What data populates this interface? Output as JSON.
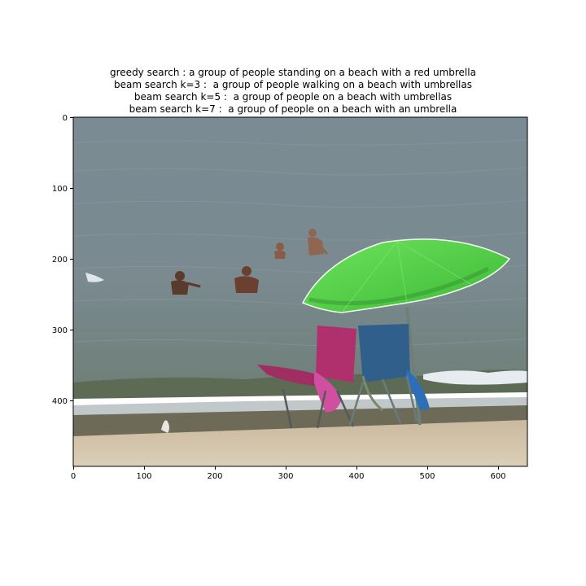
{
  "captions": [
    "greedy search : a group of people standing on a beach with a red umbrella",
    "beam search k=3 :  a group of people walking on a beach with umbrellas",
    "beam search k=5 :  a group of people on a beach with umbrellas",
    "beam search k=7 :  a group of people on a beach with an umbrella"
  ],
  "axes": {
    "x_ticks": [
      "0",
      "100",
      "200",
      "300",
      "400",
      "500",
      "600"
    ],
    "y_ticks": [
      "0",
      "100",
      "200",
      "300",
      "400"
    ]
  },
  "colors": {
    "sea": "#7a8a92",
    "sand": "#d6c7ae",
    "umbrella": "#4fd343",
    "chair_pink": "#b0306e",
    "chair_blue": "#2f5f8a"
  }
}
